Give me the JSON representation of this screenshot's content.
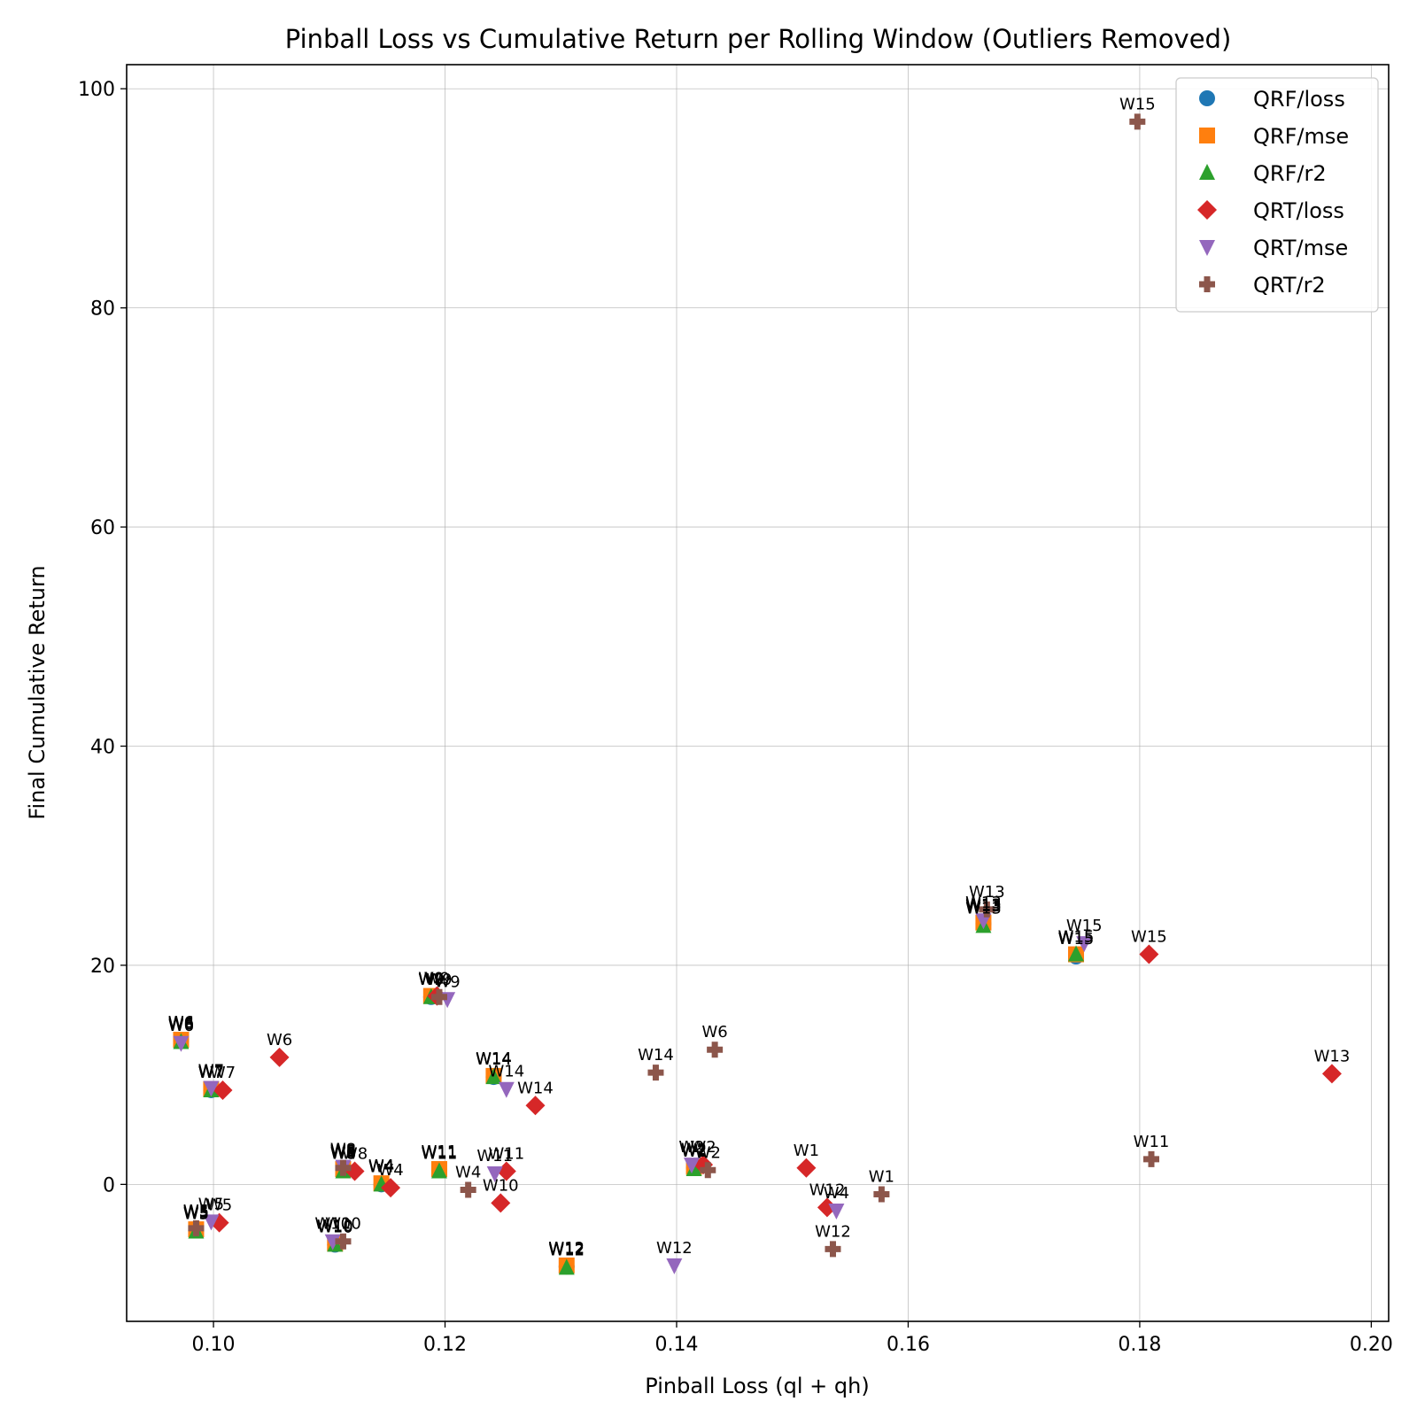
{
  "chart_data": {
    "type": "scatter",
    "title": "Pinball Loss vs Cumulative Return per Rolling Window (Outliers Removed)",
    "xlabel": "Pinball Loss (ql + qh)",
    "ylabel": "Final Cumulative Return",
    "xlim": [
      0.0925,
      0.2015
    ],
    "ylim": [
      -12.5,
      102.2
    ],
    "xticks": [
      0.1,
      0.12,
      0.14,
      0.16,
      0.18,
      0.2
    ],
    "xtick_labels": [
      "0.10",
      "0.12",
      "0.14",
      "0.16",
      "0.18",
      "0.20"
    ],
    "yticks": [
      0,
      20,
      40,
      60,
      80,
      100
    ],
    "ytick_labels": [
      "0",
      "20",
      "40",
      "60",
      "80",
      "100"
    ],
    "grid": true,
    "legend_position": "top-right",
    "series": [
      {
        "name": "QRF/loss",
        "color": "#1f77b4",
        "marker": "circle",
        "points": [
          {
            "label": "W6",
            "x": 0.0972,
            "y": 13.1
          },
          {
            "label": "W5",
            "x": 0.0985,
            "y": -4.2
          },
          {
            "label": "W7",
            "x": 0.0998,
            "y": 8.6
          },
          {
            "label": "W10",
            "x": 0.1105,
            "y": -5.5
          },
          {
            "label": "W8",
            "x": 0.1112,
            "y": 1.3
          },
          {
            "label": "W4",
            "x": 0.1145,
            "y": 0.0
          },
          {
            "label": "W9",
            "x": 0.1188,
            "y": 17.1
          },
          {
            "label": "W11",
            "x": 0.1195,
            "y": 1.3
          },
          {
            "label": "W14",
            "x": 0.1242,
            "y": 9.8
          },
          {
            "label": "W12",
            "x": 0.1305,
            "y": -7.5
          },
          {
            "label": "W2",
            "x": 0.1415,
            "y": 1.5
          },
          {
            "label": "W13",
            "x": 0.1665,
            "y": 23.8
          },
          {
            "label": "W15",
            "x": 0.1745,
            "y": 20.8
          }
        ]
      },
      {
        "name": "QRF/mse",
        "color": "#ff7f0e",
        "marker": "square",
        "points": [
          {
            "label": "W6",
            "x": 0.0972,
            "y": 13.2
          },
          {
            "label": "W5",
            "x": 0.0985,
            "y": -4.1
          },
          {
            "label": "W7",
            "x": 0.0998,
            "y": 8.7
          },
          {
            "label": "W10",
            "x": 0.1105,
            "y": -5.4
          },
          {
            "label": "W8",
            "x": 0.1112,
            "y": 1.4
          },
          {
            "label": "W4",
            "x": 0.1145,
            "y": 0.1
          },
          {
            "label": "W9",
            "x": 0.1188,
            "y": 17.2
          },
          {
            "label": "W11",
            "x": 0.1195,
            "y": 1.4
          },
          {
            "label": "W14",
            "x": 0.1242,
            "y": 9.9
          },
          {
            "label": "W12",
            "x": 0.1305,
            "y": -7.4
          },
          {
            "label": "W2",
            "x": 0.1415,
            "y": 1.6
          },
          {
            "label": "W13",
            "x": 0.1665,
            "y": 23.9
          },
          {
            "label": "W15",
            "x": 0.1745,
            "y": 21.0
          }
        ]
      },
      {
        "name": "QRF/r2",
        "color": "#2ca02c",
        "marker": "triangle-up",
        "points": [
          {
            "label": "W6",
            "x": 0.0972,
            "y": 13.0
          },
          {
            "label": "W5",
            "x": 0.0985,
            "y": -4.3
          },
          {
            "label": "W7",
            "x": 0.0998,
            "y": 8.6
          },
          {
            "label": "W10",
            "x": 0.1105,
            "y": -5.5
          },
          {
            "label": "W8",
            "x": 0.1112,
            "y": 1.2
          },
          {
            "label": "W4",
            "x": 0.1145,
            "y": 0.0
          },
          {
            "label": "W9",
            "x": 0.1188,
            "y": 17.1
          },
          {
            "label": "W11",
            "x": 0.1195,
            "y": 1.2
          },
          {
            "label": "W14",
            "x": 0.1242,
            "y": 9.8
          },
          {
            "label": "W12",
            "x": 0.1305,
            "y": -7.6
          },
          {
            "label": "W2",
            "x": 0.1415,
            "y": 1.4
          },
          {
            "label": "W13",
            "x": 0.1665,
            "y": 23.6
          },
          {
            "label": "W15",
            "x": 0.1745,
            "y": 21.0
          }
        ]
      },
      {
        "name": "QRT/loss",
        "color": "#d62728",
        "marker": "diamond",
        "points": [
          {
            "label": "W5",
            "x": 0.1005,
            "y": -3.5
          },
          {
            "label": "W7",
            "x": 0.1008,
            "y": 8.6
          },
          {
            "label": "W6",
            "x": 0.1057,
            "y": 11.6
          },
          {
            "label": "W8",
            "x": 0.1122,
            "y": 1.2
          },
          {
            "label": "W4",
            "x": 0.1153,
            "y": -0.3
          },
          {
            "label": "W9",
            "x": 0.1193,
            "y": 17.2
          },
          {
            "label": "W10",
            "x": 0.1248,
            "y": -1.7
          },
          {
            "label": "W11",
            "x": 0.1253,
            "y": 1.2
          },
          {
            "label": "W14",
            "x": 0.1278,
            "y": 7.2
          },
          {
            "label": "W2",
            "x": 0.1423,
            "y": 1.8
          },
          {
            "label": "W1",
            "x": 0.1512,
            "y": 1.5
          },
          {
            "label": "W12",
            "x": 0.153,
            "y": -2.1
          },
          {
            "label": "W15",
            "x": 0.1808,
            "y": 21.0
          },
          {
            "label": "W13",
            "x": 0.1966,
            "y": 10.1
          }
        ]
      },
      {
        "name": "QRT/mse",
        "color": "#9467bd",
        "marker": "triangle-down",
        "points": [
          {
            "label": "W6",
            "x": 0.0972,
            "y": 12.9
          },
          {
            "label": "W5",
            "x": 0.0998,
            "y": -3.4
          },
          {
            "label": "W7",
            "x": 0.0998,
            "y": 8.8
          },
          {
            "label": "W10",
            "x": 0.1103,
            "y": -5.2
          },
          {
            "label": "W8",
            "x": 0.1112,
            "y": 1.6
          },
          {
            "label": "W9",
            "x": 0.1202,
            "y": 16.9
          },
          {
            "label": "W11",
            "x": 0.1243,
            "y": 1.0
          },
          {
            "label": "W14",
            "x": 0.1253,
            "y": 8.7
          },
          {
            "label": "W12",
            "x": 0.1398,
            "y": -7.4
          },
          {
            "label": "W2",
            "x": 0.1413,
            "y": 1.8
          },
          {
            "label": "W4",
            "x": 0.1538,
            "y": -2.4
          },
          {
            "label": "W13",
            "x": 0.1665,
            "y": 24.1
          },
          {
            "label": "W15",
            "x": 0.1752,
            "y": 22.0
          }
        ]
      },
      {
        "name": "QRT/r2",
        "color": "#8c564b",
        "marker": "plus",
        "points": [
          {
            "label": "W5",
            "x": 0.0985,
            "y": -4.0
          },
          {
            "label": "W10",
            "x": 0.1112,
            "y": -5.2
          },
          {
            "label": "W8",
            "x": 0.1112,
            "y": 1.5
          },
          {
            "label": "W9",
            "x": 0.1195,
            "y": 17.1
          },
          {
            "label": "W4",
            "x": 0.122,
            "y": -0.5
          },
          {
            "label": "W14",
            "x": 0.1382,
            "y": 10.2
          },
          {
            "label": "W2",
            "x": 0.1427,
            "y": 1.3
          },
          {
            "label": "W6",
            "x": 0.1433,
            "y": 12.3
          },
          {
            "label": "W12",
            "x": 0.1535,
            "y": -5.9
          },
          {
            "label": "W1",
            "x": 0.1577,
            "y": -0.9
          },
          {
            "label": "W13",
            "x": 0.1668,
            "y": 25.1
          },
          {
            "label": "W15",
            "x": 0.1798,
            "y": 97.0
          },
          {
            "label": "W11",
            "x": 0.181,
            "y": 2.3
          }
        ]
      }
    ]
  }
}
